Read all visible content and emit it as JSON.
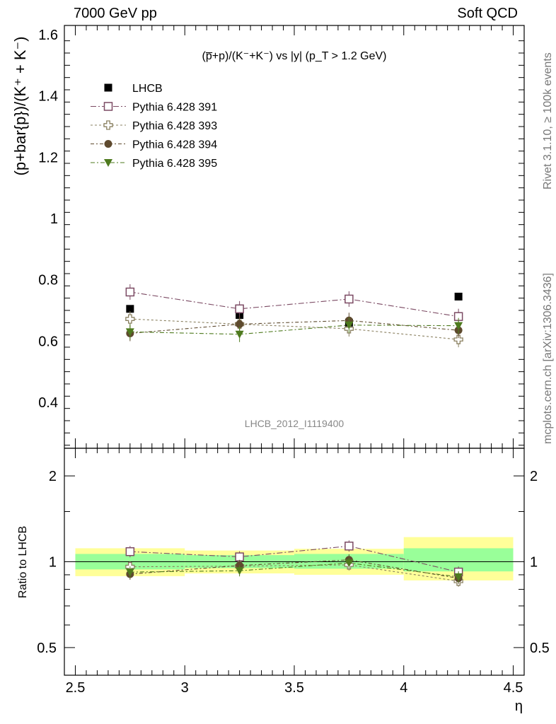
{
  "header": {
    "left": "7000 GeV pp",
    "right": "Soft QCD"
  },
  "side_labels": {
    "rivet": "Rivet 3.1.10, ≥ 100k events",
    "mcplots": "mcplots.cern.ch [arXiv:1306.3436]"
  },
  "colors": {
    "LHCB": "#000000",
    "Pythia 6.428 391": "#7b4a63",
    "Pythia 6.428 393": "#8a8060",
    "Pythia 6.428 394": "#5e4a2e",
    "Pythia 6.428 395": "#4e7a1e",
    "band_inner": "#99ff99",
    "band_outer": "#ffff99"
  },
  "chart_data": [
    {
      "type": "scatter",
      "panel": "main",
      "title": "(p̅+p)/(K⁻+K⁻) vs |y| (p_T > 1.2 GeV)",
      "ylabel": "(p+bar{p})/(K⁺ + K⁻)",
      "analysis_label": "LHCB_2012_I1119400",
      "ylim": [
        0.25,
        1.63
      ],
      "yticks": [
        "0.4",
        "0.6",
        "0.8",
        "1",
        "1.2",
        "1.4",
        "1.6"
      ],
      "legend_position": "top-left",
      "x": [
        2.75,
        3.25,
        3.75,
        4.25
      ],
      "series": [
        {
          "name": "LHCB",
          "marker": "filled-square",
          "values": [
            0.705,
            0.685,
            0.66,
            0.745
          ]
        },
        {
          "name": "Pythia 6.428 391",
          "marker": "open-square",
          "values": [
            0.76,
            0.705,
            0.737,
            0.68
          ]
        },
        {
          "name": "Pythia 6.428 393",
          "marker": "open-cross",
          "values": [
            0.672,
            0.655,
            0.64,
            0.605
          ]
        },
        {
          "name": "Pythia 6.428 394",
          "marker": "filled-circle",
          "values": [
            0.625,
            0.655,
            0.667,
            0.635
          ]
        },
        {
          "name": "Pythia 6.428 395",
          "marker": "filled-triangle-down",
          "values": [
            0.63,
            0.622,
            0.652,
            0.65
          ]
        }
      ]
    },
    {
      "type": "scatter",
      "panel": "ratio",
      "ylabel": "Ratio to LHCB",
      "xlabel": "η",
      "log_y": true,
      "ylim": [
        0.4,
        2.5
      ],
      "yticks": [
        "0.5",
        "1",
        "2"
      ],
      "xlim": [
        2.45,
        4.55
      ],
      "xticks": [
        "2.5",
        "3",
        "3.5",
        "4",
        "4.5"
      ],
      "bands": [
        {
          "x": [
            2.5,
            3.0
          ],
          "inner": [
            0.94,
            1.065
          ],
          "outer": [
            0.89,
            1.115
          ]
        },
        {
          "x": [
            3.0,
            3.5
          ],
          "inner": [
            0.95,
            1.055
          ],
          "outer": [
            0.91,
            1.095
          ]
        },
        {
          "x": [
            3.5,
            4.0
          ],
          "inner": [
            0.945,
            1.065
          ],
          "outer": [
            0.9,
            1.11
          ]
        },
        {
          "x": [
            4.0,
            4.5
          ],
          "inner": [
            0.925,
            1.115
          ],
          "outer": [
            0.86,
            1.22
          ]
        }
      ],
      "x": [
        2.75,
        3.25,
        3.75,
        4.25
      ],
      "series": [
        {
          "name": "Pythia 6.428 391",
          "values": [
            1.085,
            1.04,
            1.135,
            0.92
          ]
        },
        {
          "name": "Pythia 6.428 393",
          "values": [
            0.96,
            0.965,
            0.975,
            0.855
          ]
        },
        {
          "name": "Pythia 6.428 394",
          "values": [
            0.905,
            0.97,
            1.015,
            0.875
          ]
        },
        {
          "name": "Pythia 6.428 395",
          "values": [
            0.92,
            0.93,
            0.99,
            0.885
          ]
        }
      ]
    }
  ]
}
